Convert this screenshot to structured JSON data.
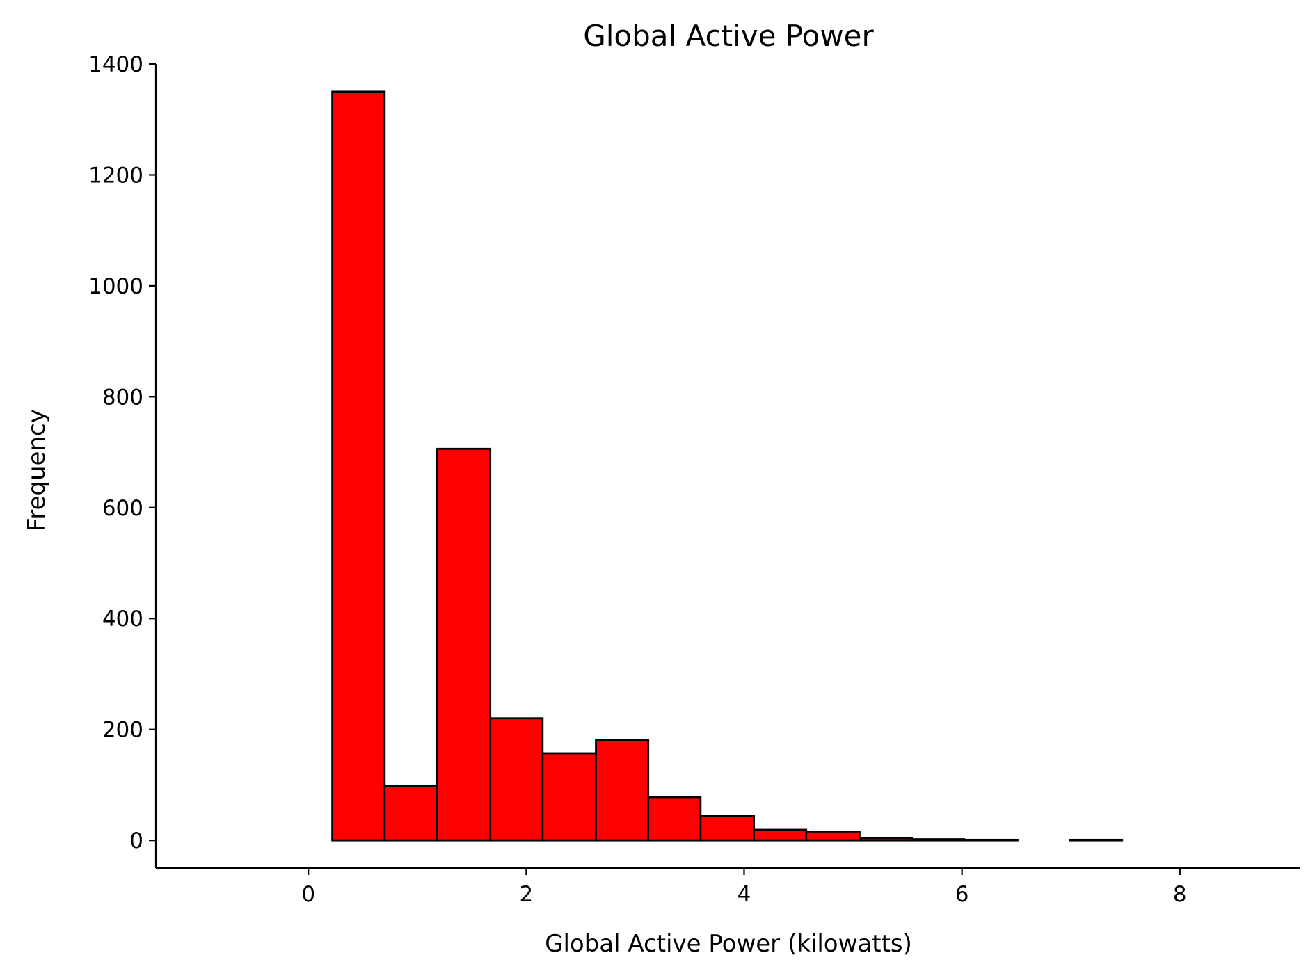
{
  "chart_data": {
    "type": "bar",
    "title": "Global Active Power",
    "xlabel": "Global Active Power (kilowatts)",
    "ylabel": "Frequency",
    "xlim": [
      -1.4,
      9.1
    ],
    "ylim": [
      -50,
      1400
    ],
    "xticks": [
      0,
      2,
      4,
      6,
      8
    ],
    "yticks": [
      0,
      200,
      400,
      600,
      800,
      1000,
      1200,
      1400
    ],
    "bins": [
      {
        "x0": 0.22,
        "x1": 0.7,
        "value": 1350
      },
      {
        "x0": 0.7,
        "x1": 1.18,
        "value": 98
      },
      {
        "x0": 1.18,
        "x1": 1.67,
        "value": 706
      },
      {
        "x0": 1.67,
        "x1": 2.15,
        "value": 220
      },
      {
        "x0": 2.15,
        "x1": 2.64,
        "value": 157
      },
      {
        "x0": 2.64,
        "x1": 3.12,
        "value": 181
      },
      {
        "x0": 3.12,
        "x1": 3.6,
        "value": 78
      },
      {
        "x0": 3.6,
        "x1": 4.09,
        "value": 44
      },
      {
        "x0": 4.09,
        "x1": 4.57,
        "value": 19
      },
      {
        "x0": 4.57,
        "x1": 5.06,
        "value": 16
      },
      {
        "x0": 5.06,
        "x1": 5.54,
        "value": 4
      },
      {
        "x0": 5.54,
        "x1": 6.02,
        "value": 2
      },
      {
        "x0": 6.02,
        "x1": 6.51,
        "value": 1
      },
      {
        "x0": 6.51,
        "x1": 6.99,
        "value": 0
      },
      {
        "x0": 6.99,
        "x1": 7.47,
        "value": 1
      }
    ],
    "bar_color": "#ff0000",
    "edge_color": "#000000",
    "grid": false
  }
}
